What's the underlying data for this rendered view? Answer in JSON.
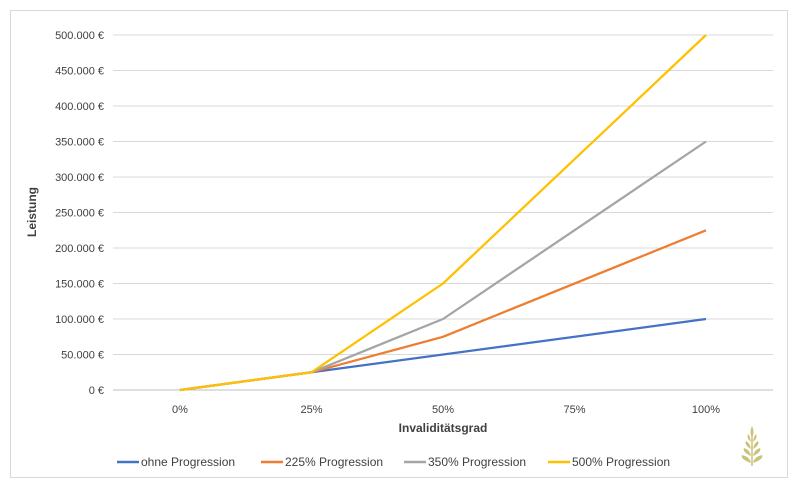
{
  "chart_data": {
    "type": "line",
    "title": "",
    "xlabel": "Invaliditätsgrad",
    "ylabel": "Leistung",
    "categories": [
      "0%",
      "25%",
      "50%",
      "75%",
      "100%"
    ],
    "x": [
      0,
      25,
      50,
      75,
      100
    ],
    "y_ticks": [
      "0 €",
      "50.000 €",
      "100.000 €",
      "150.000 €",
      "200.000 €",
      "250.000 €",
      "300.000 €",
      "350.000 €",
      "400.000 €",
      "450.000 €",
      "500.000 €"
    ],
    "ylim": [
      0,
      500000
    ],
    "grid": true,
    "legend_position": "bottom",
    "series": [
      {
        "name": "ohne Progression",
        "color": "#4472c4",
        "values": [
          [
            0,
            0
          ],
          [
            25,
            25000
          ],
          [
            100,
            100000
          ]
        ]
      },
      {
        "name": "225% Progression",
        "color": "#ed7d31",
        "values": [
          [
            0,
            0
          ],
          [
            25,
            25000
          ],
          [
            50,
            75000
          ],
          [
            100,
            225000
          ]
        ]
      },
      {
        "name": "350% Progression",
        "color": "#a5a5a5",
        "values": [
          [
            0,
            0
          ],
          [
            25,
            25000
          ],
          [
            50,
            100000
          ],
          [
            100,
            350000
          ]
        ]
      },
      {
        "name": "500% Progression",
        "color": "#ffc000",
        "values": [
          [
            0,
            0
          ],
          [
            25,
            25000
          ],
          [
            50,
            150000
          ],
          [
            100,
            500000
          ]
        ]
      }
    ]
  },
  "logo": {
    "icon": "leaf-logo-icon",
    "color": "#c9c27a"
  }
}
